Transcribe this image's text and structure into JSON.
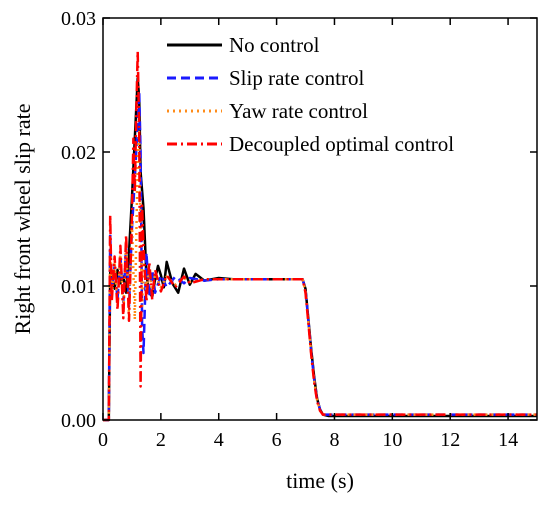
{
  "chart_data": {
    "type": "line",
    "xlabel": "time (s)",
    "ylabel": "Right front wheel slip rate",
    "xlim": [
      0,
      15
    ],
    "ylim": [
      0,
      0.03
    ],
    "xticks": [
      0,
      2,
      4,
      6,
      8,
      10,
      12,
      14
    ],
    "xtick_labels": [
      "0",
      "2",
      "4",
      "6",
      "8",
      "10",
      "12",
      "14"
    ],
    "yticks": [
      0,
      0.01,
      0.02,
      0.03
    ],
    "ytick_labels": [
      "0.00",
      "0.01",
      "0.02",
      "0.03"
    ],
    "grid": false,
    "legend_position": "top-right",
    "series": [
      {
        "name": "No control",
        "color": "#000000",
        "dash": "solid",
        "x": [
          0.0,
          0.2,
          0.25,
          0.3,
          0.4,
          0.5,
          0.6,
          0.7,
          0.8,
          0.9,
          1.0,
          1.1,
          1.2,
          1.25,
          1.3,
          1.4,
          1.5,
          1.6,
          1.7,
          1.8,
          1.9,
          2.0,
          2.1,
          2.2,
          2.4,
          2.6,
          2.8,
          3.0,
          3.2,
          3.5,
          4.0,
          4.5,
          5.0,
          5.5,
          6.0,
          6.5,
          6.9,
          7.0,
          7.1,
          7.2,
          7.3,
          7.4,
          7.5,
          7.6,
          7.8,
          8.0,
          9.0,
          10.0,
          11.0,
          12.0,
          13.0,
          14.0,
          15.0
        ],
        "y": [
          0.0,
          0.0,
          0.011,
          0.0105,
          0.0098,
          0.0112,
          0.0102,
          0.0107,
          0.0095,
          0.0125,
          0.0165,
          0.021,
          0.0255,
          0.024,
          0.0185,
          0.0158,
          0.0108,
          0.0095,
          0.0092,
          0.0105,
          0.0115,
          0.0108,
          0.0099,
          0.0118,
          0.0102,
          0.0095,
          0.0113,
          0.0101,
          0.0109,
          0.0104,
          0.0106,
          0.0105,
          0.0105,
          0.0105,
          0.0105,
          0.0105,
          0.0105,
          0.0098,
          0.0075,
          0.0052,
          0.0032,
          0.0016,
          0.0008,
          0.0004,
          0.0003,
          0.0003,
          0.0003,
          0.0003,
          0.0003,
          0.0003,
          0.0003,
          0.0003,
          0.0003
        ]
      },
      {
        "name": "Slip rate control",
        "color": "#1a1aff",
        "dash": "dashed",
        "x": [
          0.0,
          0.2,
          0.25,
          0.3,
          0.4,
          0.5,
          0.6,
          0.7,
          0.8,
          0.9,
          1.0,
          1.1,
          1.2,
          1.25,
          1.3,
          1.35,
          1.4,
          1.5,
          1.6,
          1.7,
          1.8,
          2.0,
          2.2,
          2.5,
          2.8,
          3.0,
          3.5,
          4.0,
          5.0,
          6.0,
          6.9,
          7.0,
          7.1,
          7.2,
          7.3,
          7.4,
          7.5,
          7.6,
          7.8,
          8.0,
          9.0,
          10.0,
          11.0,
          12.0,
          13.0,
          14.0,
          15.0
        ],
        "y": [
          0.0,
          0.0,
          0.014,
          0.0098,
          0.0115,
          0.009,
          0.0122,
          0.0088,
          0.013,
          0.0085,
          0.0142,
          0.018,
          0.0222,
          0.0245,
          0.02,
          0.007,
          0.005,
          0.0125,
          0.0092,
          0.0112,
          0.0095,
          0.0108,
          0.0099,
          0.0107,
          0.0102,
          0.0106,
          0.0104,
          0.0105,
          0.0105,
          0.0105,
          0.0105,
          0.0097,
          0.0074,
          0.005,
          0.003,
          0.0015,
          0.0008,
          0.0004,
          0.0004,
          0.0004,
          0.0004,
          0.0004,
          0.0004,
          0.0004,
          0.0004,
          0.0004,
          0.0004
        ]
      },
      {
        "name": "Yaw  rate control",
        "color": "#ff8c1a",
        "dash": "dotted",
        "x": [
          0.0,
          0.2,
          0.25,
          0.3,
          0.4,
          0.5,
          0.6,
          0.7,
          0.8,
          0.9,
          1.0,
          1.1,
          1.2,
          1.25,
          1.3,
          1.35,
          1.4,
          1.5,
          1.6,
          1.7,
          1.8,
          2.0,
          2.2,
          2.5,
          2.8,
          3.0,
          3.5,
          4.0,
          5.0,
          6.0,
          6.9,
          7.0,
          7.1,
          7.2,
          7.3,
          7.4,
          7.5,
          7.6,
          7.8,
          8.0,
          9.0,
          10.0,
          11.0,
          12.0,
          13.0,
          14.0,
          15.0
        ],
        "y": [
          0.0,
          0.0,
          0.0135,
          0.0092,
          0.0118,
          0.0085,
          0.0126,
          0.008,
          0.0134,
          0.0078,
          0.0148,
          0.0075,
          0.0195,
          0.0215,
          0.0135,
          0.0085,
          0.0118,
          0.0098,
          0.0112,
          0.0094,
          0.0109,
          0.0099,
          0.0107,
          0.0101,
          0.0106,
          0.0103,
          0.0105,
          0.0105,
          0.0105,
          0.0105,
          0.0105,
          0.0096,
          0.0073,
          0.0049,
          0.0029,
          0.0015,
          0.0007,
          0.0004,
          0.0004,
          0.0004,
          0.0004,
          0.0004,
          0.0004,
          0.0004,
          0.0004,
          0.0004,
          0.0004
        ]
      },
      {
        "name": "Decoupled optimal control",
        "color": "#ff0000",
        "dash": "dashdot",
        "x": [
          0.0,
          0.2,
          0.25,
          0.3,
          0.4,
          0.5,
          0.6,
          0.7,
          0.8,
          0.9,
          1.0,
          1.05,
          1.1,
          1.15,
          1.2,
          1.25,
          1.3,
          1.35,
          1.4,
          1.5,
          1.6,
          1.7,
          1.8,
          2.0,
          2.2,
          2.5,
          2.8,
          3.0,
          3.5,
          4.0,
          5.0,
          6.0,
          6.9,
          7.0,
          7.1,
          7.2,
          7.3,
          7.4,
          7.5,
          7.6,
          7.8,
          8.0,
          9.0,
          10.0,
          11.0,
          12.0,
          13.0,
          14.0,
          15.0
        ],
        "y": [
          0.0,
          0.0,
          0.0153,
          0.0088,
          0.0122,
          0.0082,
          0.013,
          0.0076,
          0.0138,
          0.0074,
          0.015,
          0.021,
          0.017,
          0.023,
          0.0275,
          0.0215,
          0.0025,
          0.016,
          0.013,
          0.0088,
          0.0118,
          0.009,
          0.0112,
          0.0096,
          0.0108,
          0.0099,
          0.0107,
          0.0102,
          0.0105,
          0.0105,
          0.0105,
          0.0105,
          0.0105,
          0.0095,
          0.0072,
          0.0048,
          0.0028,
          0.0014,
          0.0007,
          0.0004,
          0.0004,
          0.0004,
          0.0004,
          0.0004,
          0.0004,
          0.0004,
          0.0004,
          0.0004,
          0.0004
        ]
      }
    ]
  }
}
